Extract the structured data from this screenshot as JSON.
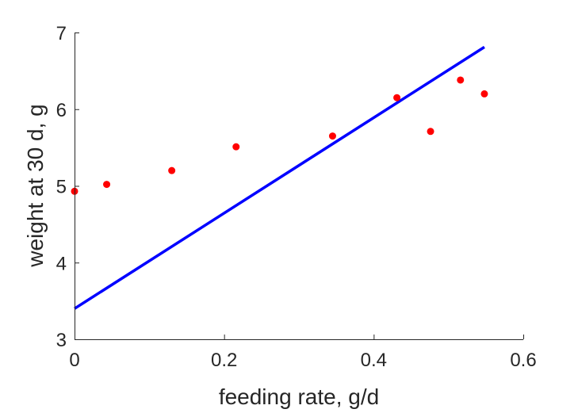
{
  "chart_data": {
    "type": "scatter",
    "title": "",
    "xlabel": "feeding rate, g/d",
    "ylabel": "weight at 30 d, g",
    "xlim": [
      0,
      0.6
    ],
    "ylim": [
      3,
      7
    ],
    "xticks": [
      0,
      0.2,
      0.4,
      0.6
    ],
    "xtick_labels": [
      "0",
      "0.2",
      "0.4",
      "0.6"
    ],
    "yticks": [
      3,
      4,
      5,
      6,
      7
    ],
    "ytick_labels": [
      "3",
      "4",
      "5",
      "6",
      "7"
    ],
    "grid": false,
    "legend": "none",
    "series": [
      {
        "type": "scatter",
        "color": "#ff0000",
        "x": [
          0.0,
          0.043,
          0.13,
          0.216,
          0.345,
          0.431,
          0.476,
          0.516,
          0.548
        ],
        "y": [
          4.93,
          5.02,
          5.2,
          5.51,
          5.65,
          6.15,
          5.71,
          6.38,
          6.2
        ]
      },
      {
        "type": "line",
        "color": "#0000ff",
        "x": [
          0.0,
          0.548
        ],
        "y": [
          3.4,
          6.81
        ]
      }
    ]
  }
}
